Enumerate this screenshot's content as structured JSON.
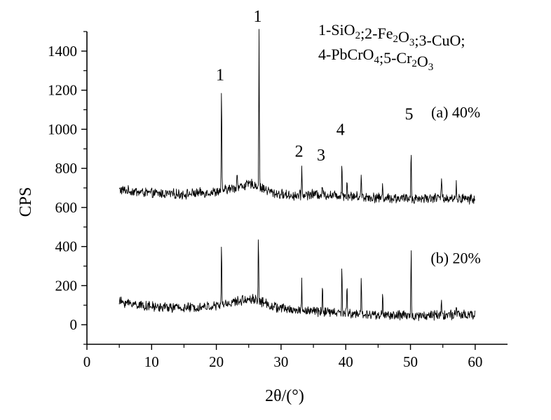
{
  "chart_data": {
    "type": "line",
    "xlabel": "2θ/(°)",
    "ylabel": "CPS",
    "xlim": [
      0,
      65
    ],
    "ylim": [
      -100,
      1500
    ],
    "xticks": [
      0,
      10,
      20,
      30,
      40,
      50,
      60
    ],
    "yticks": [
      0,
      200,
      400,
      600,
      800,
      1000,
      1200,
      1400
    ],
    "grid": false,
    "legend": {
      "placement": "top-right",
      "lines": [
        [
          {
            "t": "1-SiO"
          },
          {
            "t": "2",
            "sub": true
          },
          {
            "t": ";2-Fe"
          },
          {
            "t": "2",
            "sub": true
          },
          {
            "t": "O"
          },
          {
            "t": "3",
            "sub": true
          },
          {
            "t": ";3-CuO;"
          }
        ],
        [
          {
            "t": "4-PbCrO"
          },
          {
            "t": "4",
            "sub": true
          },
          {
            "t": ";5-Cr"
          },
          {
            "t": "2",
            "sub": true
          },
          {
            "t": "O"
          },
          {
            "t": "3",
            "sub": true
          }
        ]
      ]
    },
    "peak_labels": [
      {
        "text": "1",
        "x": 20.8,
        "y": 1250
      },
      {
        "text": "1",
        "x": 26.6,
        "y": 1550
      },
      {
        "text": "2",
        "x": 33.0,
        "y": 860
      },
      {
        "text": "3",
        "x": 36.4,
        "y": 840
      },
      {
        "text": "4",
        "x": 39.4,
        "y": 970
      },
      {
        "text": "5",
        "x": 50.0,
        "y": 1050
      }
    ],
    "series": [
      {
        "name": "(a) 40%",
        "label_at": {
          "x": 57,
          "y": 1060
        },
        "x_range": [
          5,
          60
        ],
        "baseline": [
          [
            5,
            690
          ],
          [
            10,
            672
          ],
          [
            15,
            668
          ],
          [
            20,
            680
          ],
          [
            22,
            695
          ],
          [
            24,
            710
          ],
          [
            25.5,
            720
          ],
          [
            27,
            700
          ],
          [
            29,
            672
          ],
          [
            32,
            660
          ],
          [
            35,
            668
          ],
          [
            40,
            660
          ],
          [
            45,
            650
          ],
          [
            50,
            645
          ],
          [
            55,
            650
          ],
          [
            60,
            642
          ]
        ],
        "noise": 22,
        "peaks": [
          {
            "x": 20.8,
            "y": 1215
          },
          {
            "x": 23.2,
            "y": 790
          },
          {
            "x": 26.6,
            "y": 1500
          },
          {
            "x": 33.2,
            "y": 810
          },
          {
            "x": 36.4,
            "y": 720
          },
          {
            "x": 39.4,
            "y": 835
          },
          {
            "x": 40.2,
            "y": 745
          },
          {
            "x": 42.4,
            "y": 780
          },
          {
            "x": 45.7,
            "y": 720
          },
          {
            "x": 50.1,
            "y": 900
          },
          {
            "x": 54.8,
            "y": 760
          },
          {
            "x": 57.1,
            "y": 720
          }
        ]
      },
      {
        "name": "(b) 20%",
        "label_at": {
          "x": 57,
          "y": 315
        },
        "x_range": [
          5,
          60
        ],
        "baseline": [
          [
            5,
            118
          ],
          [
            10,
            92
          ],
          [
            15,
            86
          ],
          [
            20,
            95
          ],
          [
            22,
            110
          ],
          [
            24,
            125
          ],
          [
            25.5,
            135
          ],
          [
            27,
            118
          ],
          [
            29,
            90
          ],
          [
            32,
            75
          ],
          [
            35,
            70
          ],
          [
            40,
            58
          ],
          [
            45,
            50
          ],
          [
            50,
            45
          ],
          [
            55,
            52
          ],
          [
            60,
            48
          ]
        ],
        "noise": 22,
        "peaks": [
          {
            "x": 20.8,
            "y": 410
          },
          {
            "x": 26.5,
            "y": 465
          },
          {
            "x": 33.2,
            "y": 215
          },
          {
            "x": 36.4,
            "y": 200
          },
          {
            "x": 39.4,
            "y": 310
          },
          {
            "x": 40.2,
            "y": 205
          },
          {
            "x": 42.4,
            "y": 235
          },
          {
            "x": 45.7,
            "y": 165
          },
          {
            "x": 50.1,
            "y": 395
          },
          {
            "x": 54.8,
            "y": 135
          },
          {
            "x": 57.1,
            "y": 95
          }
        ]
      }
    ]
  }
}
